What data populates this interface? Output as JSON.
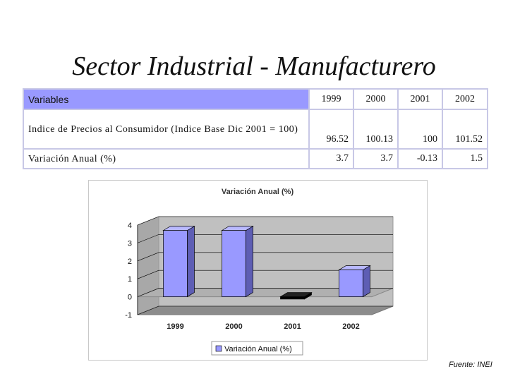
{
  "title": "Sector Industrial - Manufacturero",
  "table": {
    "header_label": "Variables",
    "years": [
      "1999",
      "2000",
      "2001",
      "2002"
    ],
    "rows": [
      {
        "label": "Indice de Precios al Consumidor (Indice Base Dic 2001 = 100)",
        "values": [
          "96.52",
          "100.13",
          "100",
          "101.52"
        ]
      },
      {
        "label": "Variación Anual (%)",
        "values": [
          "3.7",
          "3.7",
          "-0.13",
          "1.5"
        ]
      }
    ]
  },
  "chart_data": {
    "type": "bar",
    "title": "Variación Anual (%)",
    "categories": [
      "1999",
      "2000",
      "2001",
      "2002"
    ],
    "series": [
      {
        "name": "Variación Anual (%)",
        "values": [
          3.7,
          3.7,
          -0.13,
          1.5
        ]
      }
    ],
    "ylim": [
      -1,
      4
    ],
    "yticks": [
      "-1",
      "0",
      "1",
      "2",
      "3",
      "4"
    ],
    "grid": true,
    "legend": "bottom",
    "colors": {
      "bar_front": "#9999ff",
      "bar_side": "#5e5eb4",
      "bar_top": "#b8b8ff",
      "wall": "#c0c0c0",
      "floor": "#8c8c8c",
      "negative_bar": "#000000"
    }
  },
  "source": "Fuente: INEI"
}
